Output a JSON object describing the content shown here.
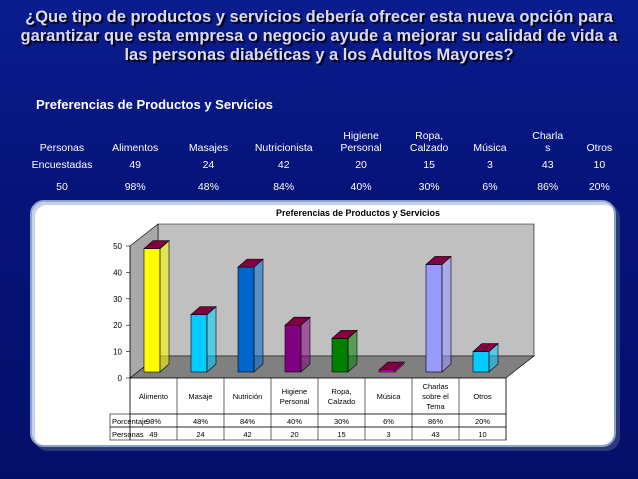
{
  "slide": {
    "title_lines": [
      "¿Que tipo de productos y servicios debería ofrecer esta nueva opción para",
      "garantizar que esta empresa o negocio ayude a mejorar su calidad de vida a",
      "las personas diabéticas y a los Adultos Mayores?"
    ],
    "section_title": "Preferencias de Productos y Servicios"
  },
  "summary_table": {
    "headers": [
      "Personas",
      "Alimentos",
      "Masajes",
      "Nutricionista",
      "Higiene\nPersonal",
      "Ropa,\nCalzado",
      "Música",
      "Charla\ns",
      "Otros"
    ],
    "rows": [
      [
        "Encuestadas",
        "49",
        "24",
        "42",
        "20",
        "15",
        "3",
        "43",
        "10"
      ],
      [
        "50",
        "98%",
        "48%",
        "84%",
        "40%",
        "30%",
        "6%",
        "86%",
        "20%"
      ]
    ]
  },
  "chart_data": {
    "type": "bar",
    "title": "Preferencias de Productos y Servicios",
    "categories": [
      "Alimento",
      "Masaje",
      "Nutrición",
      "Higiene\nPersonal",
      "Ropa,\nCalzado",
      "Música",
      "Charlas\nsobre el\nTema",
      "Otros"
    ],
    "values": [
      49,
      24,
      42,
      20,
      15,
      3,
      43,
      10
    ],
    "ylim": [
      0,
      50
    ],
    "yticks": [
      0,
      10,
      20,
      30,
      40,
      50
    ],
    "colors": [
      "#ffff00",
      "#00ccff",
      "#0066cc",
      "#800080",
      "#008000",
      "#ff00ff",
      "#9999ff",
      "#00ccff"
    ],
    "top_color": "#800040",
    "table_rows": [
      {
        "label": "Porcentaje",
        "values": [
          "98%",
          "48%",
          "84%",
          "40%",
          "30%",
          "6%",
          "86%",
          "20%"
        ]
      },
      {
        "label": "Personas",
        "values": [
          "49",
          "24",
          "42",
          "20",
          "15",
          "3",
          "43",
          "10"
        ]
      }
    ]
  }
}
